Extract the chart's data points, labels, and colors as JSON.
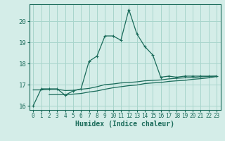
{
  "xlabel": "Humidex (Indice chaleur)",
  "background_color": "#d4ede8",
  "grid_color": "#a8d5cc",
  "line_color": "#1a6b5a",
  "xlim": [
    -0.5,
    23.5
  ],
  "ylim": [
    15.8,
    20.8
  ],
  "yticks": [
    16,
    17,
    18,
    19,
    20
  ],
  "xticks": [
    0,
    1,
    2,
    3,
    4,
    5,
    6,
    7,
    8,
    9,
    10,
    11,
    12,
    13,
    14,
    15,
    16,
    17,
    18,
    19,
    20,
    21,
    22,
    23
  ],
  "series_main": {
    "x": [
      0,
      1,
      2,
      3,
      4,
      5,
      6,
      7,
      8,
      9,
      10,
      11,
      12,
      13,
      14,
      15,
      16,
      17,
      18,
      19,
      20,
      21,
      22,
      23
    ],
    "y": [
      16.0,
      16.8,
      16.8,
      16.8,
      16.5,
      16.7,
      16.8,
      18.1,
      18.35,
      19.3,
      19.3,
      19.1,
      20.55,
      19.4,
      18.8,
      18.4,
      17.35,
      17.4,
      17.35,
      17.4,
      17.4,
      17.4,
      17.4,
      17.4
    ]
  },
  "series_upper": {
    "x": [
      0,
      1,
      2,
      3,
      4,
      5,
      6,
      7,
      8,
      9,
      10,
      11,
      12,
      13,
      14,
      15,
      16,
      17,
      18,
      19,
      20,
      21,
      22,
      23
    ],
    "y": [
      16.75,
      16.75,
      16.77,
      16.78,
      16.72,
      16.73,
      16.78,
      16.82,
      16.9,
      17.0,
      17.03,
      17.08,
      17.1,
      17.13,
      17.18,
      17.2,
      17.22,
      17.27,
      17.3,
      17.32,
      17.33,
      17.37,
      17.38,
      17.4
    ]
  },
  "series_lower": {
    "x": [
      2,
      3,
      4,
      5,
      6,
      7,
      8,
      9,
      10,
      11,
      12,
      13,
      14,
      15,
      16,
      17,
      18,
      19,
      20,
      21,
      22,
      23
    ],
    "y": [
      16.52,
      16.53,
      16.52,
      16.55,
      16.58,
      16.65,
      16.7,
      16.78,
      16.85,
      16.9,
      16.95,
      16.98,
      17.05,
      17.08,
      17.1,
      17.15,
      17.18,
      17.2,
      17.25,
      17.28,
      17.32,
      17.38
    ]
  }
}
